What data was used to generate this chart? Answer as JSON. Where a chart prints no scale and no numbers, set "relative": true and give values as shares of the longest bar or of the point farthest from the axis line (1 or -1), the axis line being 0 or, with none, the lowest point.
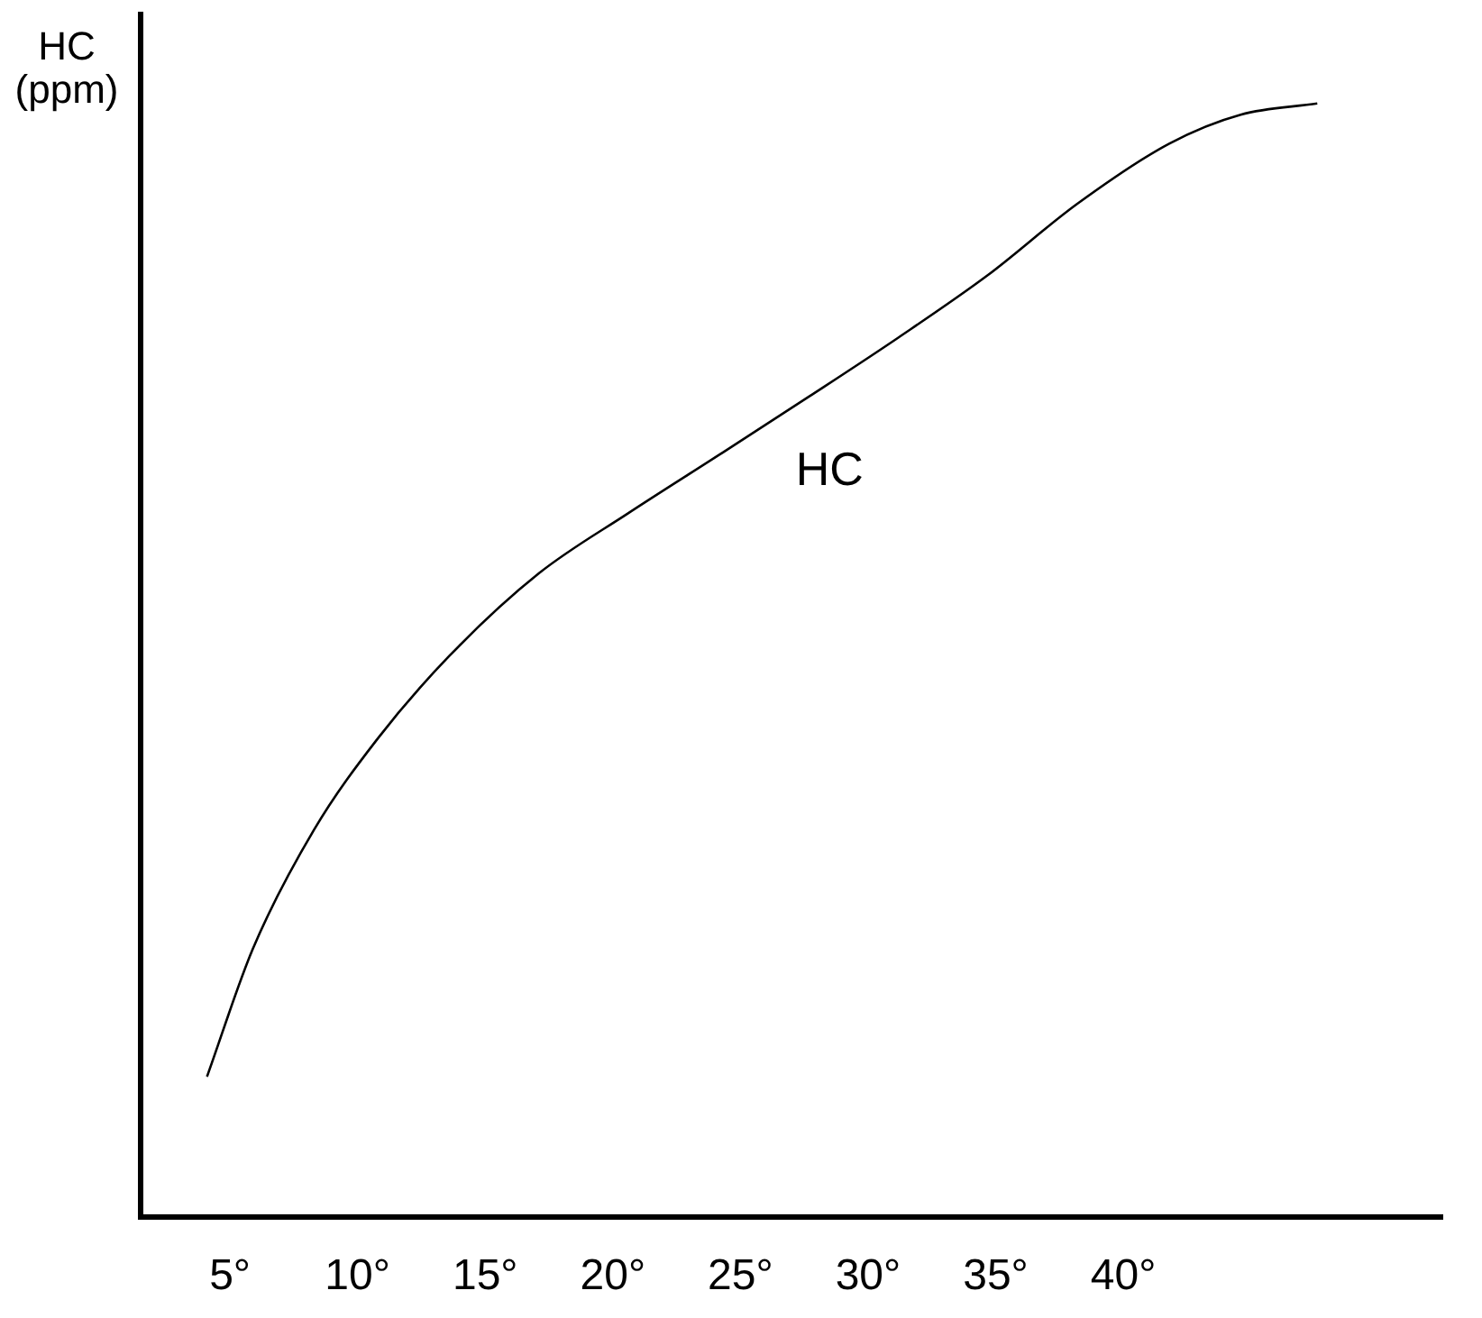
{
  "chart_data": {
    "type": "line",
    "ylabel": "HC (ppm)",
    "relative": true,
    "legend": false,
    "grid": false,
    "marker": "none",
    "line_style": "solid",
    "xlim": [
      1.5,
      52.5
    ],
    "xticks": [
      {
        "value": 5,
        "label": "5°"
      },
      {
        "value": 10,
        "label": "10°"
      },
      {
        "value": 15,
        "label": "15°"
      },
      {
        "value": 20,
        "label": "20°"
      },
      {
        "value": 25,
        "label": "25°"
      },
      {
        "value": 30,
        "label": "30°"
      },
      {
        "value": 35,
        "label": "35°"
      },
      {
        "value": 40,
        "label": "40°"
      }
    ],
    "series": [
      {
        "name": "HC",
        "color": "#000000",
        "x": [
          4.1,
          5.9,
          8.3,
          10.8,
          13.6,
          17.1,
          20.6,
          24.2,
          27.7,
          31.2,
          34.7,
          38.2,
          41.8,
          44.6,
          47.6
        ],
        "values": [
          0.126,
          0.241,
          0.348,
          0.43,
          0.504,
          0.578,
          0.632,
          0.685,
          0.737,
          0.79,
          0.846,
          0.91,
          0.964,
          0.99,
          1.0
        ]
      }
    ]
  }
}
